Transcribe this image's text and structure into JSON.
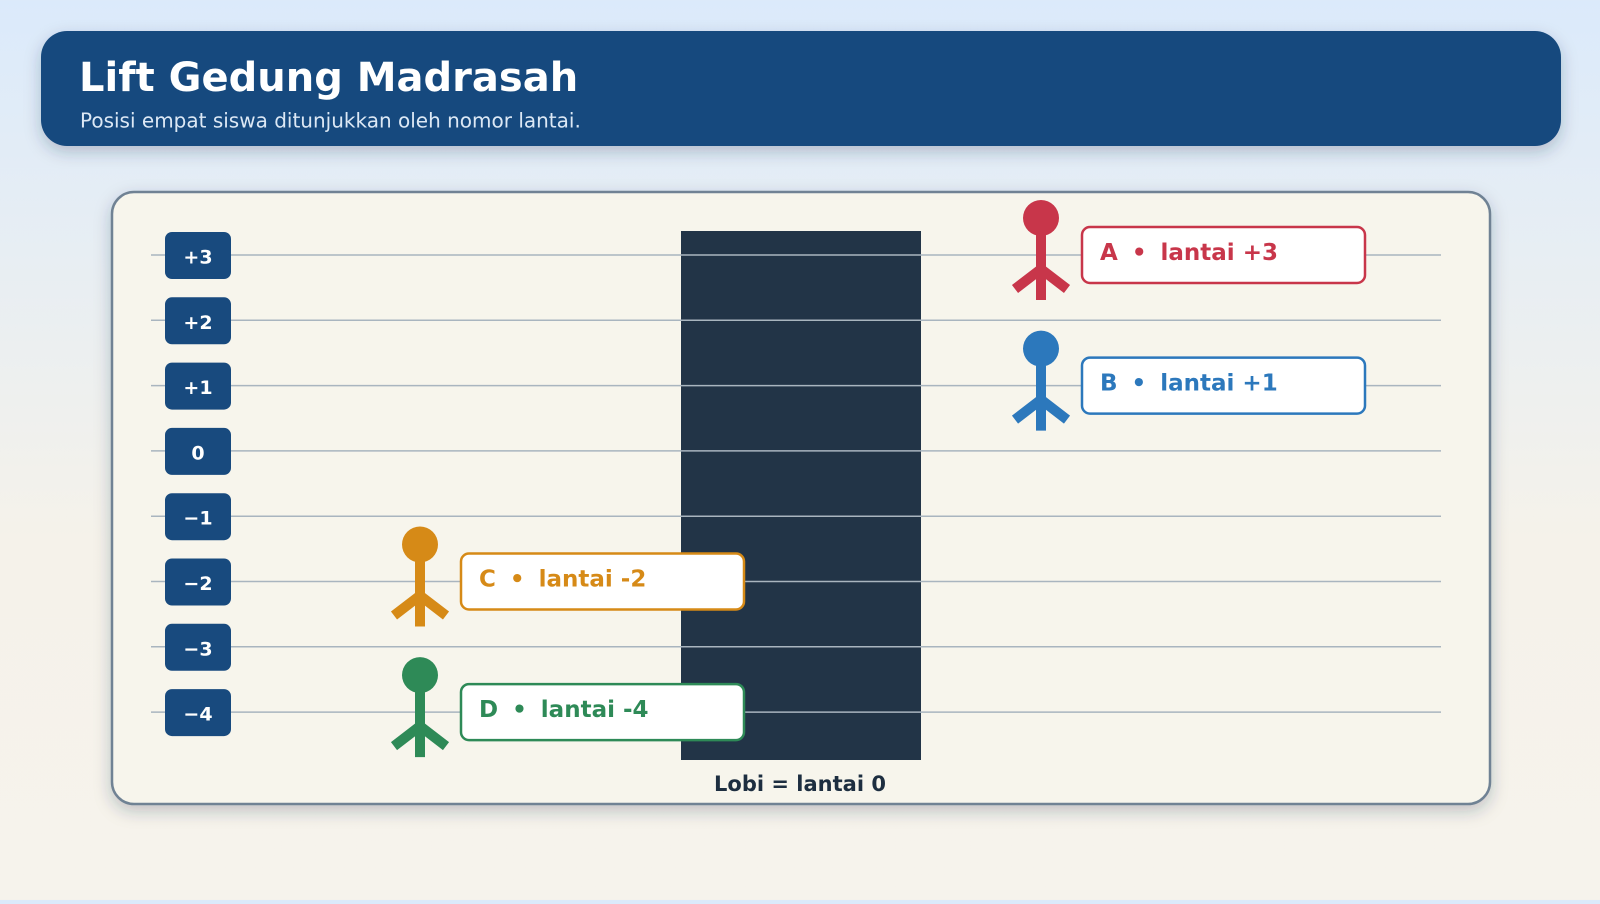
{
  "header": {
    "title": "Lift Gedung Madrasah",
    "subtitle": "Posisi empat siswa ditunjukkan oleh nomor lantai."
  },
  "floors": [
    {
      "value": 3,
      "label": "+3"
    },
    {
      "value": 2,
      "label": "+2"
    },
    {
      "value": 1,
      "label": "+1"
    },
    0,
    {
      "value": -1,
      "label": "−1"
    },
    {
      "value": -2,
      "label": "−2"
    },
    {
      "value": -3,
      "label": "−3"
    },
    {
      "value": -4,
      "label": "−4"
    }
  ],
  "separator": "•",
  "students": [
    {
      "letter": "A",
      "text": "lantai +3",
      "floor": 3,
      "color": "#c8364a",
      "side": "right"
    },
    {
      "letter": "B",
      "text": "lantai +1",
      "floor": 1,
      "color": "#2c78bc",
      "side": "right"
    },
    {
      "letter": "C",
      "text": "lantai -2",
      "floor": -2,
      "color": "#d68a17",
      "side": "left"
    },
    {
      "letter": "D",
      "text": "lantai -4",
      "floor": -4,
      "color": "#2e8a57",
      "side": "left"
    }
  ],
  "lift_caption": "Lobi = lantai 0"
}
